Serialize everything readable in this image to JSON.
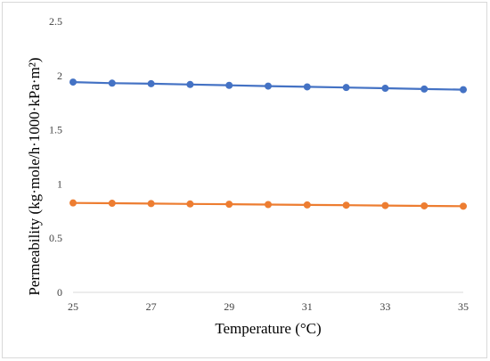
{
  "chart_data": {
    "type": "line",
    "title": "",
    "xlabel": "Temperature (°C)",
    "ylabel": "Permeability  (kg·mole/h·1000·kPa·m²)",
    "x": [
      25,
      26,
      27,
      28,
      29,
      30,
      31,
      32,
      33,
      34,
      35
    ],
    "xlim": [
      25,
      35
    ],
    "ylim": [
      0,
      2.5
    ],
    "xticks": [
      "25",
      "27",
      "29",
      "31",
      "33",
      "35"
    ],
    "yticks": [
      "0",
      "0.5",
      "1",
      "1.5",
      "2",
      "2.5"
    ],
    "grid": false,
    "legend": "none",
    "series": [
      {
        "color": "#4472c4",
        "values": [
          1.94,
          1.93,
          1.925,
          1.918,
          1.91,
          1.903,
          1.896,
          1.89,
          1.883,
          1.876,
          1.87
        ]
      },
      {
        "color": "#ed7d31",
        "values": [
          0.825,
          0.822,
          0.819,
          0.816,
          0.813,
          0.81,
          0.807,
          0.804,
          0.801,
          0.798,
          0.795
        ]
      }
    ]
  }
}
